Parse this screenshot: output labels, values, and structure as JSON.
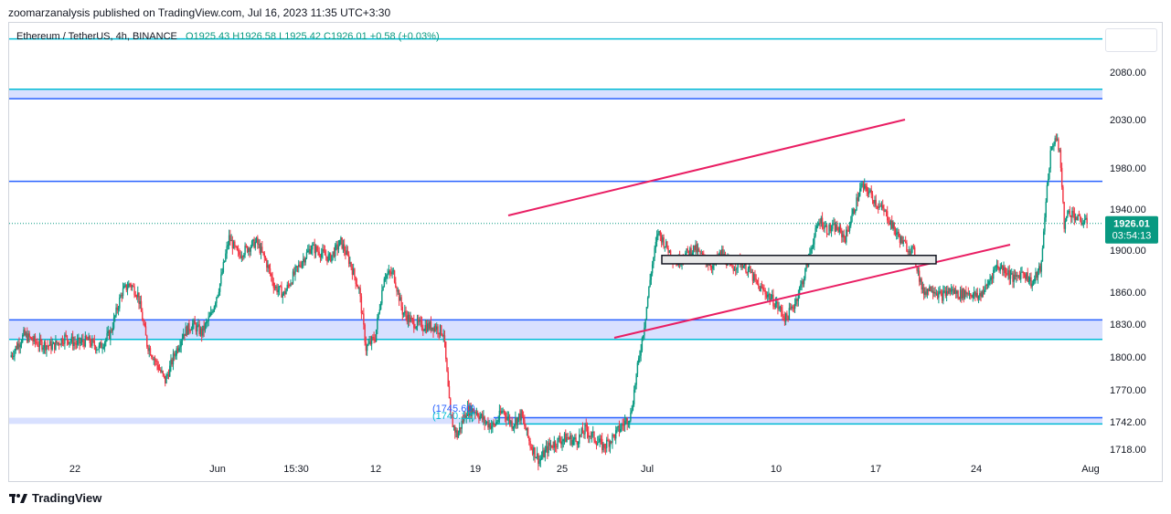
{
  "header": {
    "published": "zoomarzanalysis published on TradingView.com, Jul 16, 2023 11:35 UTC+3:30"
  },
  "legend": {
    "symbol": "Ethereum / TetherUS, 4h, BINANCE",
    "ohlc": "O1925.43  H1926.58  L1925.42  C1926.01  +0.58 (+0.03%)"
  },
  "branding": {
    "logo_text": "TradingView"
  },
  "chart_data": {
    "type": "candlestick",
    "title": "Ethereum / TetherUS, 4h, BINANCE",
    "ylim": [
      1705,
      2115
    ],
    "y_ticks": [
      "2080.00",
      "2030.00",
      "1980.00",
      "1940.00",
      "1900.00",
      "1860.00",
      "1830.00",
      "1800.00",
      "1770.00",
      "1742.00",
      "1718.00"
    ],
    "y_tick_values": [
      2080,
      2030,
      1980,
      1940,
      1900,
      1860,
      1830,
      1800,
      1770,
      1742,
      1718
    ],
    "x_ticks": [
      "22",
      "Jun",
      "15:30",
      "12",
      "19",
      "25",
      "Jul",
      "10",
      "17",
      "24",
      "Aug"
    ],
    "last_price": "1926.01",
    "countdown": "03:54:13",
    "price_labels": [
      "(1745.60)",
      "(1740.12)"
    ],
    "grid": false,
    "colors": {
      "up": "#089981",
      "down": "#f23645",
      "channel": "#e91e63",
      "level": "#2962ff",
      "level_cyan": "#00bcd4",
      "zone_fill": "#d1dbff"
    },
    "horizontal_levels": [
      {
        "price": 2115,
        "color": "cyan"
      },
      {
        "price": 2062,
        "color": "cyan"
      },
      {
        "price": 2052,
        "color": "blue"
      },
      {
        "price": 1967,
        "color": "blue"
      },
      {
        "price": 1834,
        "color": "blue"
      },
      {
        "price": 1816,
        "color": "cyan"
      },
      {
        "price": 1745.6,
        "color": "blue"
      },
      {
        "price": 1740.12,
        "color": "cyan"
      }
    ],
    "zones": [
      {
        "from": 2052,
        "to": 2062
      },
      {
        "from": 1816,
        "to": 1834
      },
      {
        "from": 1740.12,
        "to": 1745.6
      }
    ],
    "box": {
      "from": 1887,
      "to": 1895
    },
    "price_path": [
      [
        0,
        1800
      ],
      [
        12,
        1820
      ],
      [
        25,
        1812
      ],
      [
        38,
        1810
      ],
      [
        48,
        1818
      ],
      [
        58,
        1812
      ],
      [
        68,
        1815
      ],
      [
        78,
        1808
      ],
      [
        88,
        1822
      ],
      [
        98,
        1860
      ],
      [
        105,
        1868
      ],
      [
        112,
        1858
      ],
      [
        120,
        1812
      ],
      [
        128,
        1795
      ],
      [
        136,
        1778
      ],
      [
        144,
        1802
      ],
      [
        152,
        1822
      ],
      [
        160,
        1830
      ],
      [
        168,
        1822
      ],
      [
        176,
        1838
      ],
      [
        184,
        1868
      ],
      [
        192,
        1912
      ],
      [
        200,
        1895
      ],
      [
        208,
        1902
      ],
      [
        216,
        1908
      ],
      [
        224,
        1890
      ],
      [
        232,
        1865
      ],
      [
        240,
        1858
      ],
      [
        248,
        1875
      ],
      [
        256,
        1890
      ],
      [
        264,
        1903
      ],
      [
        272,
        1898
      ],
      [
        280,
        1892
      ],
      [
        290,
        1908
      ],
      [
        298,
        1888
      ],
      [
        306,
        1862
      ],
      [
        312,
        1808
      ],
      [
        320,
        1818
      ],
      [
        328,
        1876
      ],
      [
        336,
        1878
      ],
      [
        344,
        1842
      ],
      [
        352,
        1832
      ],
      [
        362,
        1828
      ],
      [
        372,
        1828
      ],
      [
        380,
        1822
      ],
      [
        386,
        1745
      ],
      [
        392,
        1730
      ],
      [
        400,
        1752
      ],
      [
        408,
        1752
      ],
      [
        416,
        1742
      ],
      [
        424,
        1738
      ],
      [
        432,
        1752
      ],
      [
        440,
        1740
      ],
      [
        448,
        1748
      ],
      [
        456,
        1722
      ],
      [
        464,
        1708
      ],
      [
        472,
        1720
      ],
      [
        480,
        1725
      ],
      [
        488,
        1728
      ],
      [
        496,
        1725
      ],
      [
        504,
        1735
      ],
      [
        512,
        1728
      ],
      [
        520,
        1720
      ],
      [
        528,
        1728
      ],
      [
        536,
        1738
      ],
      [
        544,
        1748
      ],
      [
        550,
        1790
      ],
      [
        556,
        1830
      ],
      [
        562,
        1880
      ],
      [
        568,
        1918
      ],
      [
        576,
        1902
      ],
      [
        584,
        1888
      ],
      [
        592,
        1896
      ],
      [
        600,
        1902
      ],
      [
        608,
        1892
      ],
      [
        616,
        1885
      ],
      [
        624,
        1898
      ],
      [
        632,
        1882
      ],
      [
        640,
        1890
      ],
      [
        648,
        1880
      ],
      [
        656,
        1865
      ],
      [
        664,
        1858
      ],
      [
        672,
        1848
      ],
      [
        680,
        1835
      ],
      [
        688,
        1850
      ],
      [
        696,
        1875
      ],
      [
        704,
        1910
      ],
      [
        710,
        1930
      ],
      [
        716,
        1920
      ],
      [
        724,
        1922
      ],
      [
        732,
        1912
      ],
      [
        740,
        1940
      ],
      [
        746,
        1962
      ],
      [
        752,
        1958
      ],
      [
        760,
        1945
      ],
      [
        768,
        1935
      ],
      [
        776,
        1918
      ],
      [
        784,
        1905
      ],
      [
        792,
        1898
      ],
      [
        800,
        1860
      ],
      [
        808,
        1865
      ],
      [
        816,
        1856
      ],
      [
        824,
        1862
      ],
      [
        832,
        1858
      ],
      [
        840,
        1860
      ],
      [
        848,
        1855
      ],
      [
        856,
        1865
      ],
      [
        864,
        1885
      ],
      [
        872,
        1882
      ],
      [
        880,
        1872
      ],
      [
        888,
        1880
      ],
      [
        896,
        1868
      ],
      [
        904,
        1885
      ],
      [
        908,
        1950
      ],
      [
        912,
        1995
      ],
      [
        916,
        2012
      ],
      [
        920,
        1998
      ],
      [
        924,
        1925
      ],
      [
        928,
        1938
      ],
      [
        932,
        1935
      ],
      [
        936,
        1930
      ],
      [
        940,
        1928
      ],
      [
        944,
        1926.01
      ]
    ]
  }
}
